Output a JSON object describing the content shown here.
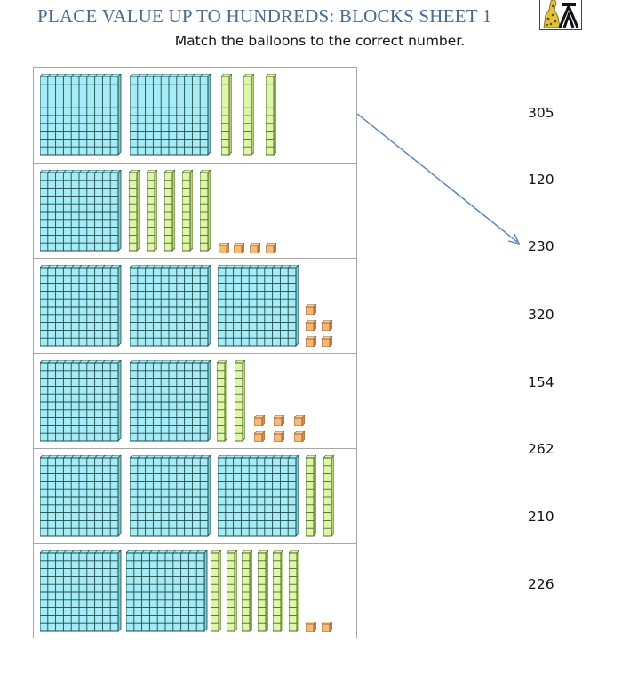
{
  "header": {
    "title": "PLACE VALUE UP TO HUNDREDS: BLOCKS SHEET 1",
    "instruction": "Match the balloons to the correct number.",
    "logo_icon": "giraffe-logo-icon"
  },
  "colors": {
    "title": "#4a6a91",
    "hundred_flat": "#a6ecf7",
    "ten_rod": "#dff5a8",
    "unit_cube": "#f7b978",
    "block_outline": "#1f4a4a",
    "arrow": "#4f7fbf",
    "table_border": "#a6a6a6"
  },
  "block_rows": [
    {
      "hundreds": 2,
      "tens": 3,
      "ones": 0,
      "label": "row-1"
    },
    {
      "hundreds": 1,
      "tens": 5,
      "ones": 4,
      "label": "row-2"
    },
    {
      "hundreds": 3,
      "tens": 0,
      "ones": 5,
      "label": "row-3"
    },
    {
      "hundreds": 2,
      "tens": 2,
      "ones": 6,
      "label": "row-4"
    },
    {
      "hundreds": 3,
      "tens": 2,
      "ones": 0,
      "label": "row-5"
    },
    {
      "hundreds": 2,
      "tens": 6,
      "ones": 2,
      "label": "row-6"
    }
  ],
  "numbers": [
    "305",
    "120",
    "230",
    "320",
    "154",
    "262",
    "210",
    "226"
  ],
  "example_match": {
    "from_row": 1,
    "to_number": "230"
  }
}
